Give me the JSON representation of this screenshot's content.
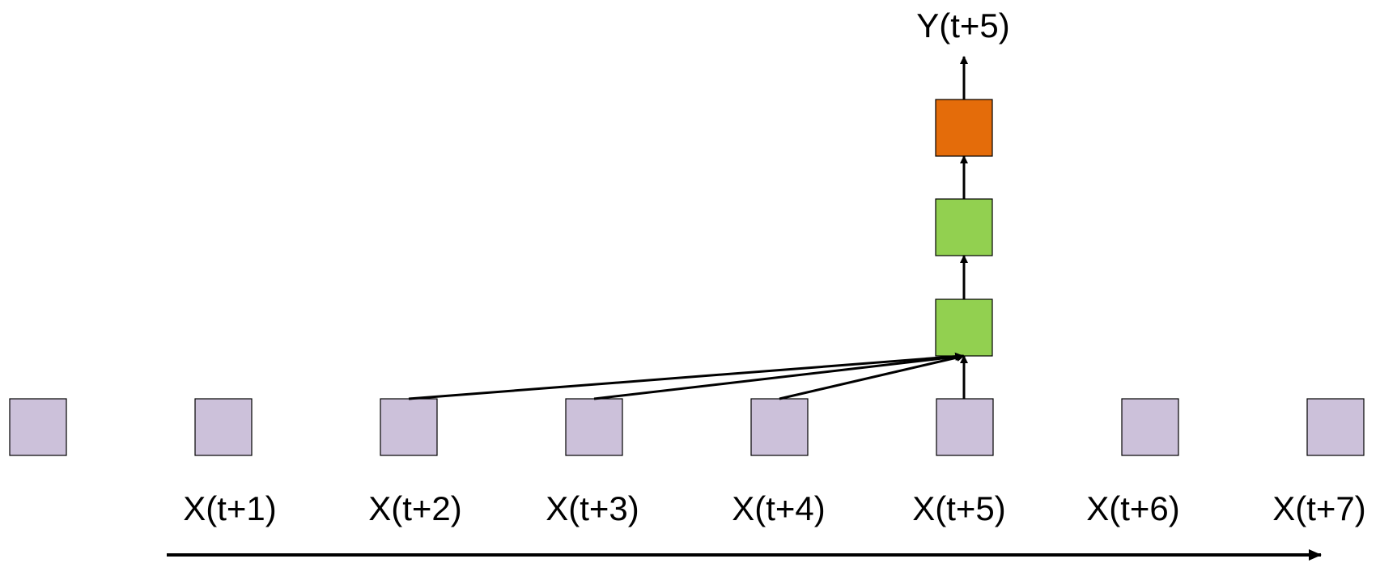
{
  "output_label": "Y(t+5)",
  "input_labels": [
    "X(t+1)",
    "X(t+2)",
    "X(t+3)",
    "X(t+4)",
    "X(t+5)",
    "X(t+6)",
    "X(t+7)"
  ],
  "colors": {
    "input_node": "#ccc1da",
    "hidden_node": "#92d050",
    "output_node": "#e46c0a",
    "stroke": "#000000"
  }
}
